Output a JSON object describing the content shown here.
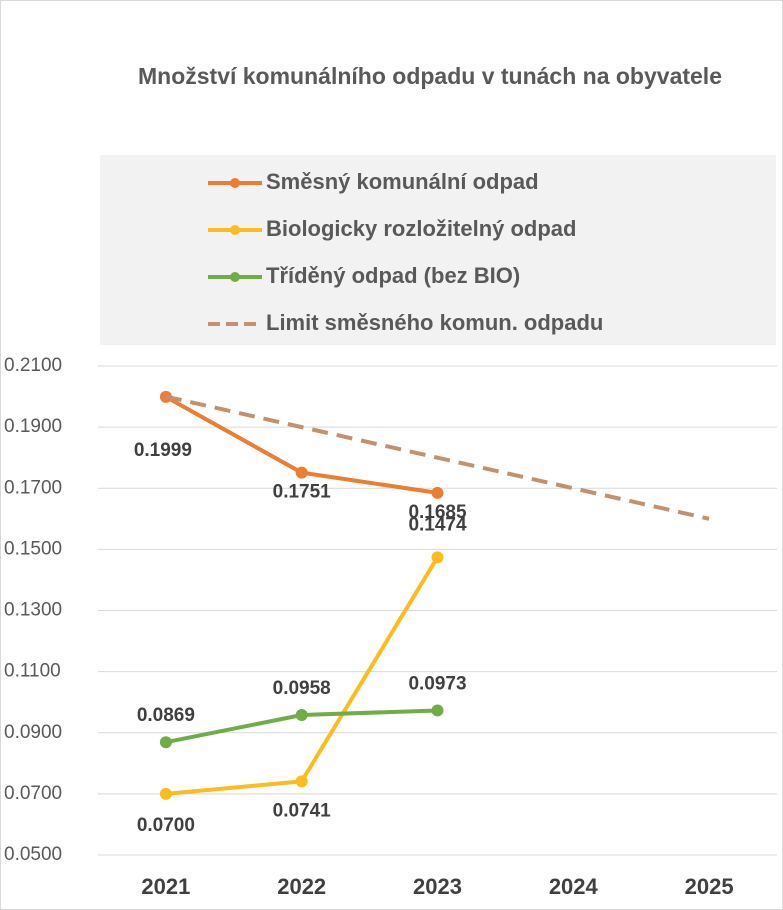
{
  "chart_data": {
    "type": "line",
    "title": "Množství komunálního odpadu v tunách na obyvatele",
    "categories": [
      "2021",
      "2022",
      "2023",
      "2024",
      "2025"
    ],
    "series": [
      {
        "name": "Směsný komunální odpad",
        "color": "#ed7d31",
        "values": [
          0.1999,
          0.1751,
          0.1685,
          null,
          null
        ]
      },
      {
        "name": "Biologicky rozložitelný odpad",
        "color": "#fbbc1e",
        "values": [
          0.07,
          0.0741,
          0.1474,
          null,
          null
        ],
        "value_labels": [
          "0.0700",
          "0.0741",
          "0.1474",
          null,
          null
        ]
      },
      {
        "name": "Tříděný odpad (bez BIO)",
        "color": "#70ad47",
        "values": [
          0.0869,
          0.0958,
          0.0973,
          null,
          null
        ]
      },
      {
        "name": "Limit směsného komun. odpadu",
        "color": "#c09270",
        "dashed": true,
        "values": [
          0.2,
          0.19,
          0.18,
          0.17,
          0.16
        ]
      }
    ],
    "ylim": [
      0.05,
      0.21
    ],
    "yticks": [
      {
        "value": 0.05,
        "label": "0.0500"
      },
      {
        "value": 0.07,
        "label": "0.0700"
      },
      {
        "value": 0.09,
        "label": "0.0900"
      },
      {
        "value": 0.11,
        "label": "0.1100"
      },
      {
        "value": 0.13,
        "label": "0.1300"
      },
      {
        "value": 0.15,
        "label": "0.1500"
      },
      {
        "value": 0.17,
        "label": "0.1700"
      },
      {
        "value": 0.19,
        "label": "0.1900"
      },
      {
        "value": 0.21,
        "label": "0.2100"
      }
    ],
    "grid": true
  }
}
